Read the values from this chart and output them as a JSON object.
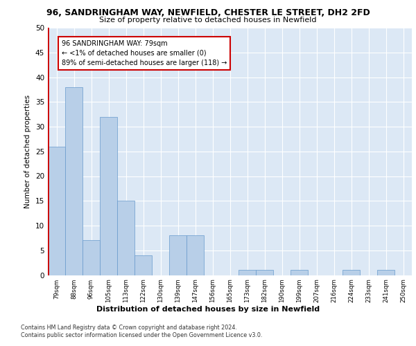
{
  "title_line1": "96, SANDRINGHAM WAY, NEWFIELD, CHESTER LE STREET, DH2 2FD",
  "title_line2": "Size of property relative to detached houses in Newfield",
  "xlabel": "Distribution of detached houses by size in Newfield",
  "ylabel": "Number of detached properties",
  "categories": [
    "79sqm",
    "88sqm",
    "96sqm",
    "105sqm",
    "113sqm",
    "122sqm",
    "130sqm",
    "139sqm",
    "147sqm",
    "156sqm",
    "165sqm",
    "173sqm",
    "182sqm",
    "190sqm",
    "199sqm",
    "207sqm",
    "216sqm",
    "224sqm",
    "233sqm",
    "241sqm",
    "250sqm"
  ],
  "values": [
    26,
    38,
    7,
    32,
    15,
    4,
    0,
    8,
    8,
    0,
    0,
    1,
    1,
    0,
    1,
    0,
    0,
    1,
    0,
    1,
    0
  ],
  "highlight_index": 0,
  "bar_color": "#b8cfe8",
  "bar_edge_color": "#6699cc",
  "highlight_line_color": "#cc0000",
  "annotation_text": "96 SANDRINGHAM WAY: 79sqm\n← <1% of detached houses are smaller (0)\n89% of semi-detached houses are larger (118) →",
  "annotation_box_color": "white",
  "annotation_box_edge": "#cc0000",
  "ylim": [
    0,
    50
  ],
  "yticks": [
    0,
    5,
    10,
    15,
    20,
    25,
    30,
    35,
    40,
    45,
    50
  ],
  "footer_line1": "Contains HM Land Registry data © Crown copyright and database right 2024.",
  "footer_line2": "Contains public sector information licensed under the Open Government Licence v3.0.",
  "plot_bg_color": "#dce8f5"
}
